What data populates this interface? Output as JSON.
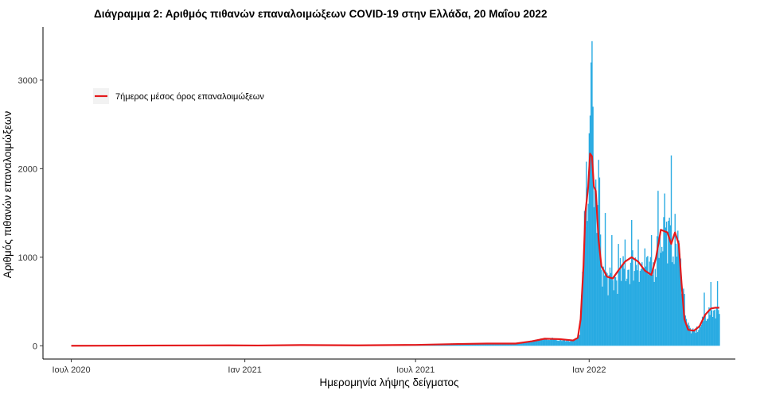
{
  "chart_data": {
    "type": "bar",
    "title": "Διάγραμμα 2: Αριθμός πιθανών επαναλοιμώξεων COVID-19 στην Ελλάδα, 20 Μαΐου 2022",
    "xlabel": "Ημερομηνία λήψης δείγματος",
    "ylabel": "Αριθμός πιθανών επαναλοιμώξεων",
    "x_ticks": [
      {
        "date": "2020-07-01",
        "label": "Ιουλ 2020"
      },
      {
        "date": "2021-01-01",
        "label": "Ιαν 2021"
      },
      {
        "date": "2021-07-01",
        "label": "Ιουλ 2021"
      },
      {
        "date": "2022-01-01",
        "label": "Ιαν 2022"
      }
    ],
    "y_ticks": [
      0,
      1000,
      2000,
      3000
    ],
    "xlim": [
      "2020-06-01",
      "2022-06-05"
    ],
    "ylim": [
      -150,
      3600
    ],
    "grid": false,
    "legend_position": "top-left",
    "series": [
      {
        "name": "",
        "kind": "bar",
        "color": "#29ABE2"
      },
      {
        "name": "7ήμερος μέσος όρος επαναλοιμώξεων",
        "kind": "line",
        "color": "#E41A1C"
      }
    ],
    "bar_profile": [
      [
        "2020-07-01",
        0
      ],
      [
        "2020-09-01",
        2
      ],
      [
        "2020-11-01",
        5
      ],
      [
        "2020-12-01",
        8
      ],
      [
        "2021-01-01",
        4
      ],
      [
        "2021-03-01",
        8
      ],
      [
        "2021-05-01",
        5
      ],
      [
        "2021-07-01",
        12
      ],
      [
        "2021-08-01",
        20
      ],
      [
        "2021-09-01",
        25
      ],
      [
        "2021-10-01",
        20
      ],
      [
        "2021-10-20",
        30
      ],
      [
        "2021-11-05",
        60
      ],
      [
        "2021-11-20",
        80
      ],
      [
        "2021-12-01",
        70
      ],
      [
        "2021-12-10",
        60
      ],
      [
        "2021-12-18",
        60
      ],
      [
        "2021-12-22",
        150
      ],
      [
        "2021-12-25",
        700
      ],
      [
        "2021-12-28",
        1500
      ],
      [
        "2021-12-31",
        2000
      ],
      [
        "2022-01-02",
        2200
      ],
      [
        "2022-01-04",
        2200
      ],
      [
        "2022-01-06",
        1800
      ],
      [
        "2022-01-08",
        1650
      ],
      [
        "2022-01-12",
        1100
      ],
      [
        "2022-01-16",
        800
      ],
      [
        "2022-01-24",
        700
      ],
      [
        "2022-02-03",
        800
      ],
      [
        "2022-02-13",
        900
      ],
      [
        "2022-02-20",
        950
      ],
      [
        "2022-03-01",
        850
      ],
      [
        "2022-03-08",
        800
      ],
      [
        "2022-03-15",
        1100
      ],
      [
        "2022-03-20",
        1300
      ],
      [
        "2022-03-27",
        1200
      ],
      [
        "2022-04-02",
        1200
      ],
      [
        "2022-04-05",
        1100
      ],
      [
        "2022-04-10",
        700
      ],
      [
        "2022-04-15",
        250
      ],
      [
        "2022-04-20",
        150
      ],
      [
        "2022-04-28",
        200
      ],
      [
        "2022-05-05",
        350
      ],
      [
        "2022-05-12",
        400
      ],
      [
        "2022-05-19",
        420
      ]
    ],
    "bar_spikes": [
      [
        "2022-01-04",
        3440
      ],
      [
        "2022-01-03",
        3200
      ],
      [
        "2022-01-05",
        2700
      ],
      [
        "2022-01-01",
        2400
      ],
      [
        "2022-01-02",
        2600
      ],
      [
        "2022-01-11",
        2100
      ],
      [
        "2022-01-12",
        1900
      ],
      [
        "2022-01-18",
        1500
      ],
      [
        "2022-01-25",
        1250
      ],
      [
        "2022-02-01",
        1150
      ],
      [
        "2022-02-08",
        1200
      ],
      [
        "2022-02-15",
        1420
      ],
      [
        "2022-02-22",
        1200
      ],
      [
        "2022-03-01",
        1100
      ],
      [
        "2022-03-08",
        1250
      ],
      [
        "2022-03-15",
        1750
      ],
      [
        "2022-03-22",
        1720
      ],
      [
        "2022-03-29",
        2150
      ],
      [
        "2022-04-05",
        1300
      ],
      [
        "2022-05-03",
        600
      ],
      [
        "2022-05-10",
        720
      ],
      [
        "2022-05-17",
        730
      ]
    ],
    "line_values": [
      [
        "2020-07-01",
        0
      ],
      [
        "2020-10-01",
        3
      ],
      [
        "2020-12-15",
        5
      ],
      [
        "2021-01-15",
        3
      ],
      [
        "2021-03-01",
        8
      ],
      [
        "2021-05-01",
        5
      ],
      [
        "2021-07-01",
        10
      ],
      [
        "2021-08-15",
        20
      ],
      [
        "2021-09-15",
        25
      ],
      [
        "2021-10-15",
        25
      ],
      [
        "2021-11-01",
        50
      ],
      [
        "2021-11-15",
        80
      ],
      [
        "2021-12-01",
        75
      ],
      [
        "2021-12-15",
        60
      ],
      [
        "2021-12-20",
        90
      ],
      [
        "2021-12-23",
        300
      ],
      [
        "2021-12-26",
        900
      ],
      [
        "2021-12-28",
        1500
      ],
      [
        "2021-12-31",
        1800
      ],
      [
        "2022-01-02",
        2170
      ],
      [
        "2022-01-04",
        2140
      ],
      [
        "2022-01-06",
        1800
      ],
      [
        "2022-01-08",
        1750
      ],
      [
        "2022-01-11",
        1200
      ],
      [
        "2022-01-14",
        900
      ],
      [
        "2022-01-20",
        780
      ],
      [
        "2022-01-26",
        760
      ],
      [
        "2022-02-01",
        850
      ],
      [
        "2022-02-08",
        950
      ],
      [
        "2022-02-15",
        1000
      ],
      [
        "2022-02-22",
        950
      ],
      [
        "2022-03-01",
        850
      ],
      [
        "2022-03-08",
        800
      ],
      [
        "2022-03-13",
        1000
      ],
      [
        "2022-03-18",
        1310
      ],
      [
        "2022-03-25",
        1280
      ],
      [
        "2022-03-29",
        1150
      ],
      [
        "2022-04-02",
        1280
      ],
      [
        "2022-04-06",
        1150
      ],
      [
        "2022-04-09",
        700
      ],
      [
        "2022-04-12",
        300
      ],
      [
        "2022-04-16",
        180
      ],
      [
        "2022-04-22",
        170
      ],
      [
        "2022-04-28",
        220
      ],
      [
        "2022-05-04",
        350
      ],
      [
        "2022-05-10",
        420
      ],
      [
        "2022-05-15",
        430
      ],
      [
        "2022-05-19",
        430
      ]
    ]
  }
}
